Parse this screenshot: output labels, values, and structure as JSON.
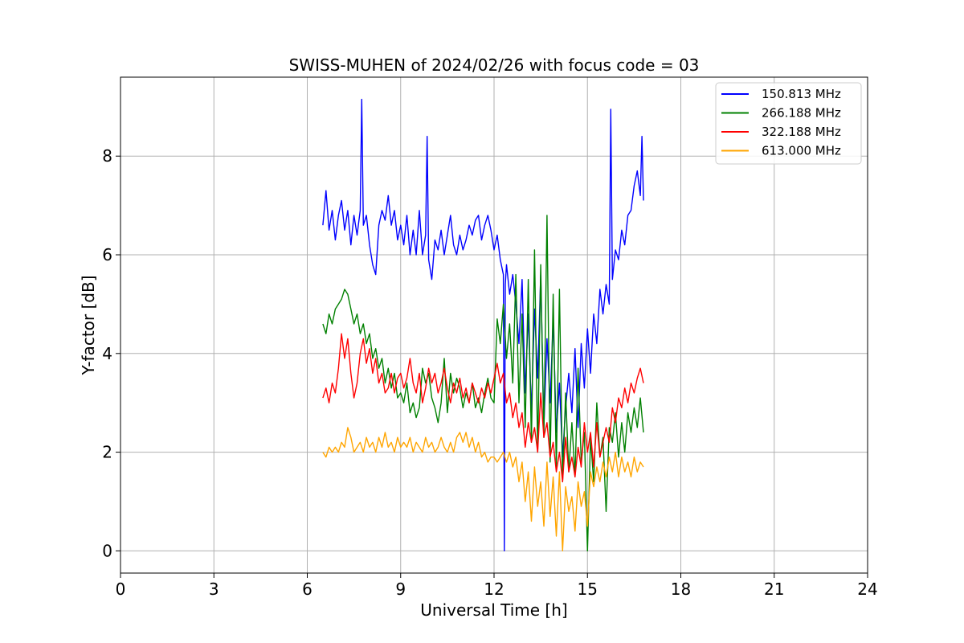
{
  "chart_data": {
    "type": "line",
    "title": "SWISS-MUHEN of 2024/02/26 with focus code = 03",
    "xlabel": "Universal Time [h]",
    "ylabel": "Y-factor [dB]",
    "xlim": [
      0,
      24
    ],
    "ylim": [
      -0.45,
      9.6
    ],
    "xticks": [
      0,
      3,
      6,
      9,
      12,
      15,
      18,
      21,
      24
    ],
    "yticks": [
      0,
      2,
      4,
      6,
      8
    ],
    "xtick_labels": [
      "0",
      "3",
      "6",
      "9",
      "12",
      "15",
      "18",
      "21",
      "24"
    ],
    "ytick_labels": [
      "0",
      "2",
      "4",
      "6",
      "8"
    ],
    "grid": true,
    "legend_position": "top-right",
    "series": [
      {
        "name": "150.813 MHz",
        "color": "#0000ff",
        "x": [
          6.5,
          6.6,
          6.7,
          6.8,
          6.9,
          7.0,
          7.1,
          7.2,
          7.3,
          7.4,
          7.5,
          7.6,
          7.7,
          7.75,
          7.8,
          7.9,
          8.0,
          8.1,
          8.2,
          8.3,
          8.4,
          8.5,
          8.6,
          8.7,
          8.8,
          8.9,
          9.0,
          9.1,
          9.2,
          9.3,
          9.4,
          9.5,
          9.6,
          9.7,
          9.8,
          9.85,
          9.9,
          10.0,
          10.1,
          10.2,
          10.3,
          10.4,
          10.5,
          10.6,
          10.7,
          10.8,
          10.9,
          11.0,
          11.1,
          11.2,
          11.3,
          11.4,
          11.5,
          11.6,
          11.7,
          11.8,
          11.9,
          12.0,
          12.1,
          12.2,
          12.3,
          12.33,
          12.36,
          12.4,
          12.5,
          12.6,
          12.7,
          12.8,
          12.9,
          13.0,
          13.1,
          13.2,
          13.3,
          13.4,
          13.5,
          13.6,
          13.7,
          13.8,
          13.9,
          14.0,
          14.1,
          14.2,
          14.3,
          14.4,
          14.5,
          14.6,
          14.7,
          14.8,
          14.9,
          15.0,
          15.1,
          15.2,
          15.3,
          15.4,
          15.5,
          15.6,
          15.7,
          15.75,
          15.8,
          15.9,
          16.0,
          16.1,
          16.2,
          16.3,
          16.4,
          16.5,
          16.6,
          16.7,
          16.75,
          16.8
        ],
        "y": [
          6.6,
          7.3,
          6.5,
          6.9,
          6.3,
          6.8,
          7.1,
          6.5,
          6.9,
          6.2,
          6.8,
          6.4,
          6.9,
          9.15,
          6.6,
          6.8,
          6.2,
          5.8,
          5.6,
          6.6,
          6.9,
          6.7,
          7.2,
          6.6,
          6.9,
          6.3,
          6.6,
          6.2,
          6.8,
          6.0,
          6.5,
          6.0,
          6.9,
          6.0,
          6.4,
          8.4,
          5.9,
          5.5,
          6.3,
          6.1,
          6.5,
          6.0,
          6.4,
          6.8,
          6.2,
          6.0,
          6.4,
          6.1,
          6.3,
          6.6,
          6.4,
          6.7,
          6.8,
          6.3,
          6.6,
          6.8,
          6.5,
          6.1,
          6.4,
          5.9,
          5.6,
          0.0,
          5.4,
          5.8,
          5.2,
          5.6,
          5.0,
          4.2,
          5.5,
          3.2,
          4.8,
          2.8,
          4.9,
          3.5,
          5.6,
          2.5,
          4.3,
          3.0,
          4.7,
          2.4,
          3.4,
          1.9,
          2.9,
          3.6,
          2.8,
          4.1,
          2.5,
          4.2,
          3.3,
          4.5,
          3.6,
          4.8,
          4.2,
          5.3,
          4.8,
          5.4,
          5.0,
          8.95,
          5.5,
          6.1,
          5.9,
          6.5,
          6.2,
          6.8,
          6.9,
          7.4,
          7.7,
          7.2,
          8.4,
          7.1
        ]
      },
      {
        "name": "266.188 MHz",
        "color": "#008000",
        "x": [
          6.5,
          6.6,
          6.7,
          6.8,
          6.9,
          7.0,
          7.1,
          7.2,
          7.3,
          7.4,
          7.5,
          7.6,
          7.7,
          7.8,
          7.9,
          8.0,
          8.1,
          8.2,
          8.3,
          8.4,
          8.5,
          8.6,
          8.7,
          8.8,
          8.9,
          9.0,
          9.1,
          9.2,
          9.3,
          9.4,
          9.5,
          9.6,
          9.7,
          9.8,
          9.9,
          10.0,
          10.1,
          10.2,
          10.3,
          10.4,
          10.5,
          10.6,
          10.7,
          10.8,
          10.9,
          11.0,
          11.1,
          11.2,
          11.3,
          11.4,
          11.5,
          11.6,
          11.7,
          11.8,
          11.9,
          12.0,
          12.1,
          12.2,
          12.3,
          12.4,
          12.5,
          12.6,
          12.7,
          12.8,
          12.9,
          13.0,
          13.1,
          13.2,
          13.3,
          13.4,
          13.5,
          13.6,
          13.7,
          13.8,
          13.9,
          14.0,
          14.1,
          14.2,
          14.3,
          14.4,
          14.5,
          14.6,
          14.7,
          14.8,
          14.9,
          15.0,
          15.1,
          15.2,
          15.3,
          15.4,
          15.5,
          15.6,
          15.7,
          15.8,
          15.9,
          16.0,
          16.1,
          16.2,
          16.3,
          16.4,
          16.5,
          16.6,
          16.7,
          16.8
        ],
        "y": [
          4.6,
          4.4,
          4.8,
          4.6,
          4.9,
          5.0,
          5.1,
          5.3,
          5.2,
          4.9,
          4.6,
          4.8,
          4.4,
          4.6,
          4.2,
          4.4,
          3.9,
          4.1,
          3.7,
          3.9,
          3.4,
          3.7,
          3.3,
          3.6,
          3.1,
          3.2,
          3.0,
          3.4,
          2.8,
          3.0,
          2.7,
          2.9,
          3.7,
          3.4,
          3.6,
          3.1,
          2.9,
          2.6,
          3.0,
          3.9,
          2.8,
          3.6,
          3.2,
          3.5,
          3.3,
          2.9,
          3.2,
          3.0,
          3.4,
          2.9,
          3.1,
          2.8,
          3.2,
          3.5,
          3.1,
          3.0,
          4.7,
          4.2,
          5.0,
          3.9,
          4.6,
          3.4,
          5.6,
          3.0,
          4.8,
          2.5,
          5.5,
          2.2,
          6.1,
          2.0,
          5.8,
          2.3,
          6.8,
          1.8,
          5.2,
          1.7,
          5.3,
          1.4,
          3.2,
          1.6,
          2.6,
          1.5,
          3.7,
          1.8,
          2.4,
          0.0,
          2.3,
          1.4,
          3.0,
          1.9,
          2.3,
          0.8,
          2.5,
          2.2,
          2.8,
          1.9,
          2.6,
          2.0,
          2.8,
          2.4,
          2.9,
          2.5,
          3.1,
          2.4
        ]
      },
      {
        "name": "322.188 MHz",
        "color": "#ff0000",
        "x": [
          6.5,
          6.6,
          6.7,
          6.8,
          6.9,
          7.0,
          7.1,
          7.2,
          7.3,
          7.4,
          7.5,
          7.6,
          7.7,
          7.8,
          7.9,
          8.0,
          8.1,
          8.2,
          8.3,
          8.4,
          8.5,
          8.6,
          8.7,
          8.8,
          8.9,
          9.0,
          9.1,
          9.2,
          9.3,
          9.4,
          9.5,
          9.6,
          9.7,
          9.8,
          9.9,
          10.0,
          10.1,
          10.2,
          10.3,
          10.4,
          10.5,
          10.6,
          10.7,
          10.8,
          10.9,
          11.0,
          11.1,
          11.2,
          11.3,
          11.4,
          11.5,
          11.6,
          11.7,
          11.8,
          11.9,
          12.0,
          12.1,
          12.2,
          12.3,
          12.4,
          12.5,
          12.6,
          12.7,
          12.8,
          12.9,
          13.0,
          13.1,
          13.2,
          13.3,
          13.4,
          13.5,
          13.6,
          13.7,
          13.8,
          13.9,
          14.0,
          14.1,
          14.2,
          14.3,
          14.4,
          14.5,
          14.6,
          14.7,
          14.8,
          14.9,
          15.0,
          15.1,
          15.2,
          15.3,
          15.4,
          15.5,
          15.6,
          15.7,
          15.8,
          15.9,
          16.0,
          16.1,
          16.2,
          16.3,
          16.4,
          16.5,
          16.6,
          16.7,
          16.8
        ],
        "y": [
          3.1,
          3.3,
          3.0,
          3.4,
          3.2,
          3.7,
          4.4,
          3.9,
          4.3,
          3.6,
          3.1,
          3.4,
          4.0,
          4.3,
          3.8,
          4.1,
          3.6,
          3.9,
          3.4,
          3.6,
          3.2,
          3.3,
          3.6,
          3.2,
          3.5,
          3.6,
          3.3,
          3.5,
          3.9,
          3.4,
          3.2,
          3.6,
          3.0,
          3.3,
          3.7,
          3.4,
          3.6,
          3.2,
          3.4,
          3.7,
          3.3,
          3.0,
          3.4,
          3.2,
          3.5,
          3.1,
          3.3,
          3.0,
          3.4,
          3.2,
          3.0,
          3.3,
          3.1,
          3.4,
          3.2,
          3.5,
          3.8,
          3.4,
          3.6,
          3.0,
          3.2,
          2.7,
          3.0,
          2.5,
          2.8,
          2.1,
          2.6,
          2.2,
          2.5,
          2.0,
          3.2,
          2.3,
          2.6,
          1.9,
          2.2,
          1.6,
          2.0,
          1.4,
          2.3,
          1.6,
          1.9,
          1.5,
          2.1,
          1.7,
          2.6,
          2.0,
          2.4,
          1.7,
          2.6,
          1.9,
          2.2,
          2.5,
          2.2,
          2.9,
          2.6,
          3.1,
          2.9,
          3.3,
          3.0,
          3.4,
          3.2,
          3.5,
          3.7,
          3.4
        ]
      },
      {
        "name": "613.000 MHz",
        "color": "#ffa500",
        "x": [
          6.5,
          6.6,
          6.7,
          6.8,
          6.9,
          7.0,
          7.1,
          7.2,
          7.3,
          7.4,
          7.5,
          7.6,
          7.7,
          7.8,
          7.9,
          8.0,
          8.1,
          8.2,
          8.3,
          8.4,
          8.5,
          8.6,
          8.7,
          8.8,
          8.9,
          9.0,
          9.1,
          9.2,
          9.3,
          9.4,
          9.5,
          9.6,
          9.7,
          9.8,
          9.9,
          10.0,
          10.1,
          10.2,
          10.3,
          10.4,
          10.5,
          10.6,
          10.7,
          10.8,
          10.9,
          11.0,
          11.1,
          11.2,
          11.3,
          11.4,
          11.5,
          11.6,
          11.7,
          11.8,
          11.9,
          12.0,
          12.1,
          12.2,
          12.3,
          12.4,
          12.5,
          12.6,
          12.7,
          12.8,
          12.9,
          13.0,
          13.1,
          13.2,
          13.3,
          13.4,
          13.5,
          13.6,
          13.7,
          13.8,
          13.9,
          14.0,
          14.1,
          14.2,
          14.3,
          14.4,
          14.5,
          14.6,
          14.7,
          14.8,
          14.9,
          15.0,
          15.1,
          15.2,
          15.3,
          15.4,
          15.5,
          15.6,
          15.7,
          15.8,
          15.9,
          16.0,
          16.1,
          16.2,
          16.3,
          16.4,
          16.5,
          16.6,
          16.7,
          16.8
        ],
        "y": [
          2.0,
          1.9,
          2.1,
          2.0,
          2.1,
          2.0,
          2.2,
          2.1,
          2.5,
          2.3,
          2.0,
          2.1,
          2.2,
          2.0,
          2.3,
          2.1,
          2.2,
          2.0,
          2.3,
          2.1,
          2.4,
          2.1,
          2.2,
          2.0,
          2.3,
          2.1,
          2.2,
          2.1,
          2.3,
          2.0,
          2.2,
          2.1,
          2.0,
          2.3,
          2.1,
          2.2,
          2.0,
          2.1,
          2.3,
          2.1,
          2.0,
          2.2,
          2.0,
          2.3,
          2.4,
          2.2,
          2.4,
          2.1,
          2.3,
          2.0,
          2.2,
          1.9,
          2.0,
          1.8,
          1.9,
          1.9,
          1.8,
          1.9,
          2.0,
          1.8,
          2.0,
          1.7,
          1.9,
          1.4,
          1.8,
          1.0,
          1.6,
          0.6,
          1.7,
          0.9,
          1.4,
          0.5,
          1.8,
          0.7,
          1.5,
          0.3,
          1.6,
          0.0,
          1.3,
          0.8,
          1.1,
          0.4,
          1.4,
          0.9,
          1.2,
          0.5,
          1.6,
          1.3,
          1.7,
          1.4,
          1.8,
          1.5,
          1.9,
          1.6,
          2.0,
          1.5,
          1.9,
          1.6,
          1.8,
          1.5,
          1.9,
          1.6,
          1.8,
          1.7
        ]
      }
    ]
  }
}
